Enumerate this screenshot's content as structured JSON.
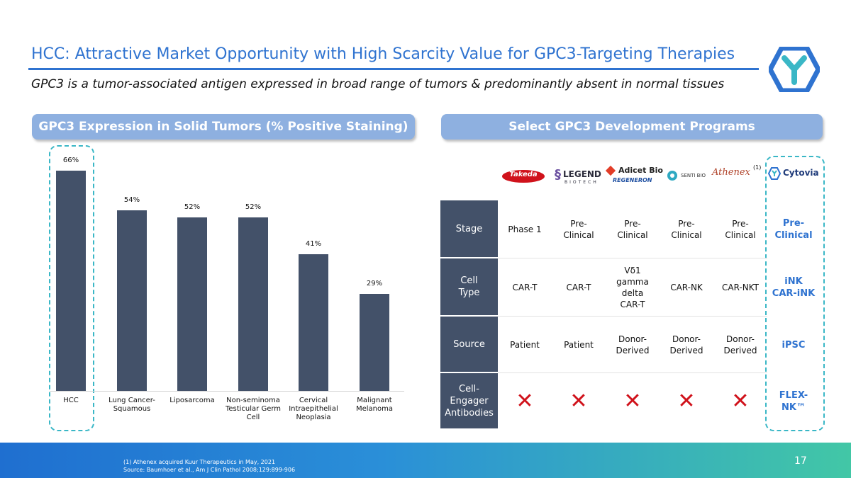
{
  "header": {
    "title": "HCC: Attractive Market Opportunity with High Scarcity Value for GPC3-Targeting Therapies",
    "subtitle": "GPC3 is a tumor-associated antigen expressed in broad range of tumors & predominantly absent in normal tissues"
  },
  "left_panel": {
    "title": "GPC3 Expression in Solid Tumors (% Positive Staining)"
  },
  "right_panel": {
    "title": "Select GPC3 Development Programs"
  },
  "chart_data": {
    "type": "bar",
    "categories": [
      "HCC",
      "Lung Cancer-\nSquamous",
      "Liposarcoma",
      "Non-seminoma\nTesticular Germ\nCell",
      "Cervical\nIntraepithelial\nNeoplasia",
      "Malignant\nMelanoma"
    ],
    "values": [
      66,
      54,
      52,
      52,
      41,
      29
    ],
    "data_labels": [
      "66%",
      "54%",
      "52%",
      "52%",
      "41%",
      "29%"
    ],
    "ylim": [
      0,
      70
    ],
    "xlabel": "",
    "ylabel": "",
    "grid": false,
    "color": "#435169"
  },
  "programs": {
    "companies": [
      {
        "name": "Takeda",
        "text": "Takeda"
      },
      {
        "name": "Legend Biotech",
        "text": "LEGEND",
        "sub": "BIOTECH"
      },
      {
        "name": "Adicet Bio / Regeneron",
        "text": "Adicet Bio",
        "sub": "REGENERON"
      },
      {
        "name": "Senti Bio",
        "text": "SENTI BIO"
      },
      {
        "name": "Athenex",
        "text": "Athenex",
        "note": "(1)"
      },
      {
        "name": "Cytovia",
        "text": "Cytovia"
      }
    ],
    "rows": [
      {
        "label": "Stage",
        "cells": [
          "Phase 1",
          "Pre-\nClinical",
          "Pre-\nClinical",
          "Pre-\nClinical",
          "Pre-\nClinical"
        ],
        "cytovia": "Pre-\nClinical"
      },
      {
        "label": "Cell\nType",
        "cells": [
          "CAR-T",
          "CAR-T",
          "Vδ1\ngamma\ndelta\nCAR-T",
          "CAR-NK",
          "CAR-NKT"
        ],
        "cytovia": "iNK\nCAR-iNK"
      },
      {
        "label": "Source",
        "cells": [
          "Patient",
          "Patient",
          "Donor-\nDerived",
          "Donor-\nDerived",
          "Donor-\nDerived"
        ],
        "cytovia": "iPSC"
      },
      {
        "label": "Cell-\nEngager\nAntibodies",
        "cells": [
          "✕",
          "✕",
          "✕",
          "✕",
          "✕"
        ],
        "cytovia": "FLEX-\nNK™"
      }
    ]
  },
  "footer": {
    "footnote_1": "(1)    Athenex acquired Kuur Therapeutics in May, 2021",
    "source": "Source: Baumhoer et al., Am J Clin Pathol 2008;129:899-906",
    "page_number": "17"
  },
  "colors": {
    "accent": "#2f73d0",
    "bar": "#435169",
    "dash": "#3ab7c6",
    "x_mark": "#d0121b"
  },
  "icons": {
    "brand_logo": "cytovia-hexagon-y-icon"
  }
}
